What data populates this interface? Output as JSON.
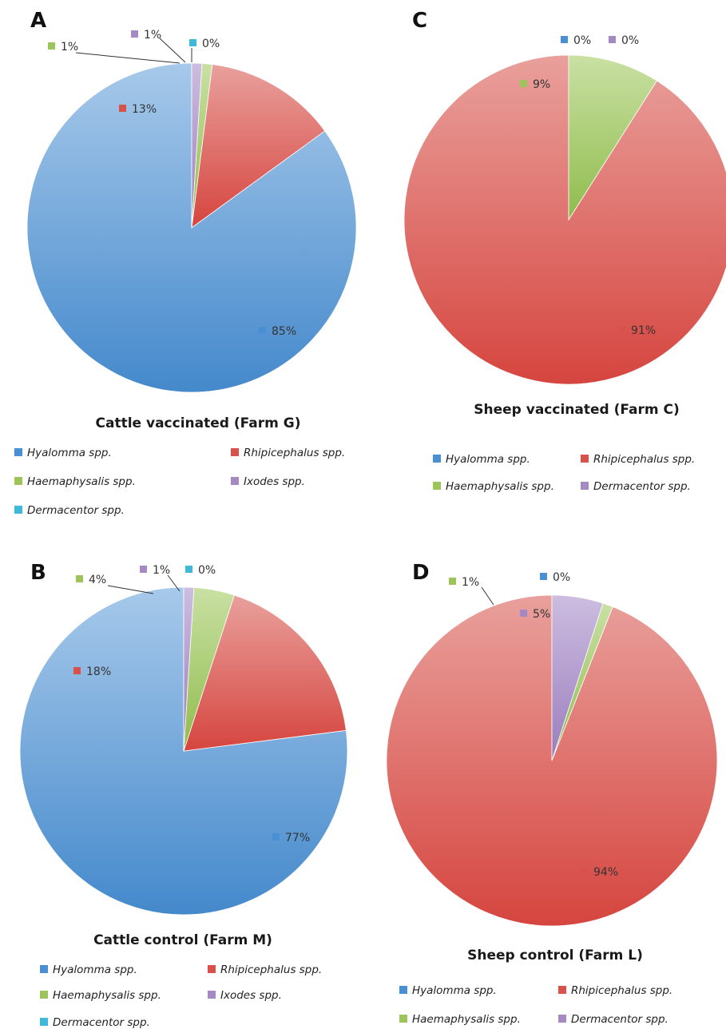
{
  "colors": {
    "Hyalomma spp.": "#4a8fd1",
    "Rhipicephalus spp.": "#d9514b",
    "Haemaphysalis spp.": "#9cc45a",
    "Ixodes spp.": "#a489c3",
    "Dermacentor spp.": "#3fb8d9",
    "Dermacentor spp._sheep": "#a489c3"
  },
  "chart_data": [
    {
      "panel": "A",
      "type": "pie",
      "title": "Cattle vaccinated (Farm G)",
      "series": [
        {
          "name": "Hyalomma spp.",
          "value": 85,
          "label": "85%"
        },
        {
          "name": "Rhipicephalus spp.",
          "value": 13,
          "label": "13%"
        },
        {
          "name": "Haemaphysalis spp.",
          "value": 1,
          "label": "1%"
        },
        {
          "name": "Ixodes spp.",
          "value": 1,
          "label": "1%"
        },
        {
          "name": "Dermacentor spp.",
          "value": 0,
          "label": "0%"
        }
      ],
      "legend": [
        "Hyalomma spp.",
        "Rhipicephalus spp.",
        "Haemaphysalis spp.",
        "Ixodes spp.",
        "Dermacentor spp."
      ]
    },
    {
      "panel": "B",
      "type": "pie",
      "title": "Cattle control (Farm M)",
      "series": [
        {
          "name": "Hyalomma spp.",
          "value": 77,
          "label": "77%"
        },
        {
          "name": "Rhipicephalus spp.",
          "value": 18,
          "label": "18%"
        },
        {
          "name": "Haemaphysalis spp.",
          "value": 4,
          "label": "4%"
        },
        {
          "name": "Ixodes spp.",
          "value": 1,
          "label": "1%"
        },
        {
          "name": "Dermacentor spp.",
          "value": 0,
          "label": "0%"
        }
      ],
      "legend": [
        "Hyalomma spp.",
        "Rhipicephalus spp.",
        "Haemaphysalis spp.",
        "Ixodes spp.",
        "Dermacentor spp."
      ]
    },
    {
      "panel": "C",
      "type": "pie",
      "title": "Sheep vaccinated (Farm C)",
      "series": [
        {
          "name": "Hyalomma spp.",
          "value": 0,
          "label": "0%"
        },
        {
          "name": "Rhipicephalus spp.",
          "value": 91,
          "label": "91%"
        },
        {
          "name": "Haemaphysalis spp.",
          "value": 9,
          "label": "9%"
        },
        {
          "name": "Dermacentor spp.",
          "value": 0,
          "label": "0%"
        }
      ],
      "legend": [
        "Hyalomma spp.",
        "Rhipicephalus spp.",
        "Haemaphysalis spp.",
        "Dermacentor spp."
      ]
    },
    {
      "panel": "D",
      "type": "pie",
      "title": "Sheep control (Farm L)",
      "series": [
        {
          "name": "Hyalomma spp.",
          "value": 0,
          "label": "0%"
        },
        {
          "name": "Rhipicephalus spp.",
          "value": 94,
          "label": "94%"
        },
        {
          "name": "Haemaphysalis spp.",
          "value": 1,
          "label": "1%"
        },
        {
          "name": "Dermacentor spp.",
          "value": 5,
          "label": "5%"
        }
      ],
      "legend": [
        "Hyalomma spp.",
        "Rhipicephalus spp.",
        "Haemaphysalis spp.",
        "Dermacentor spp."
      ]
    }
  ]
}
